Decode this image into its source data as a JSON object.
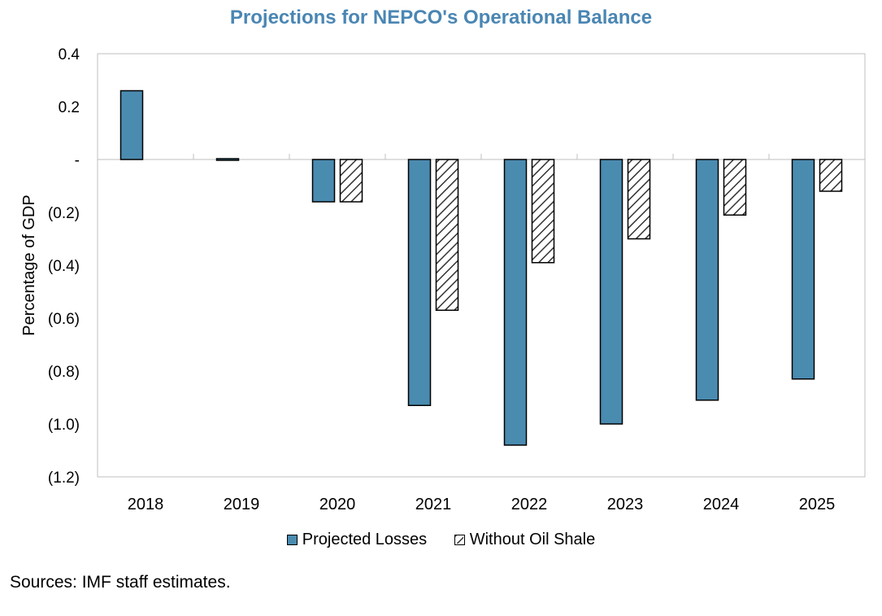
{
  "chart_data": {
    "type": "bar",
    "title": "Projections for NEPCO's Operational Balance",
    "xlabel": "",
    "ylabel": "Percentage of GDP",
    "categories": [
      "2018",
      "2019",
      "2020",
      "2021",
      "2022",
      "2023",
      "2024",
      "2025"
    ],
    "series": [
      {
        "name": "Projected Losses",
        "color": "#4a8bb0",
        "pattern": "solid",
        "values": [
          0.26,
          0.0,
          -0.16,
          -0.93,
          -1.08,
          -1.0,
          -0.91,
          -0.83
        ]
      },
      {
        "name": "Without Oil Shale",
        "color": "#ffffff",
        "pattern": "diagonal-hatch",
        "values": [
          null,
          null,
          -0.16,
          -0.57,
          -0.39,
          -0.3,
          -0.21,
          -0.12
        ]
      }
    ],
    "ylim": [
      -1.2,
      0.4
    ],
    "yticks": [
      0.4,
      0.2,
      0,
      -0.2,
      -0.4,
      -0.6,
      -0.8,
      -1.0,
      -1.2
    ],
    "ytick_labels": [
      "0.4",
      "0.2",
      "-",
      "(0.2)",
      "(0.4)",
      "(0.6)",
      "(0.8)",
      "(1.0)",
      "(1.2)"
    ],
    "grid": false,
    "legend_position": "bottom"
  },
  "source_note": "Sources: IMF staff estimates."
}
